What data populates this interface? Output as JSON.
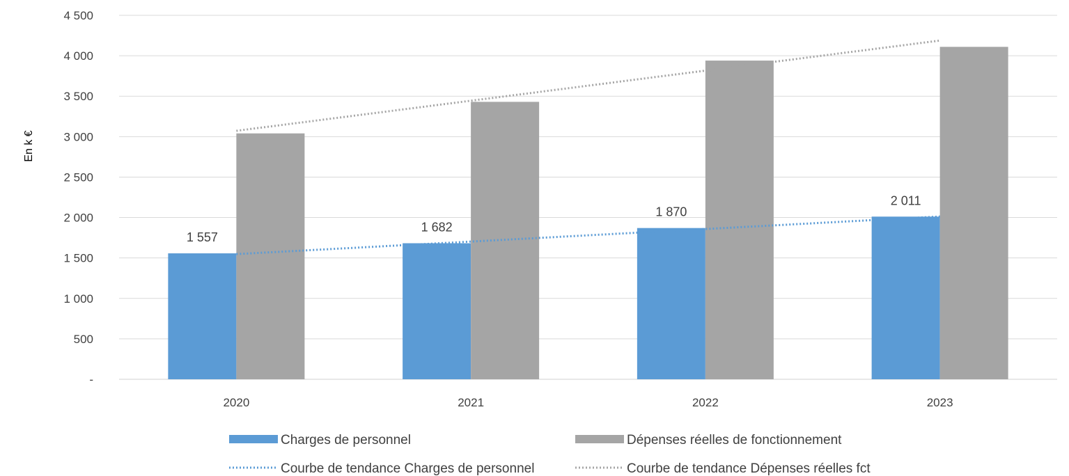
{
  "chart_data": {
    "type": "bar",
    "title": "",
    "xlabel": "",
    "ylabel": "En k €",
    "ylim": [
      0,
      4500
    ],
    "ytick_step": 500,
    "ytick_labels": [
      "-",
      "500",
      "1 000",
      "1 500",
      "2 000",
      "2 500",
      "3 000",
      "3 500",
      "4 000",
      "4 500"
    ],
    "categories": [
      "2020",
      "2021",
      "2022",
      "2023"
    ],
    "grid": true,
    "legend_position": "bottom",
    "series": [
      {
        "name": "Charges de personnel",
        "color": "#5B9BD5",
        "values": [
          1557,
          1682,
          1870,
          2011
        ],
        "data_labels": [
          "1 557",
          "1 682",
          "1 870",
          "2 011"
        ]
      },
      {
        "name": "Dépenses réelles de fonctionnement",
        "color": "#A5A5A5",
        "values": [
          3040,
          3430,
          3940,
          4110
        ]
      }
    ],
    "trendlines": [
      {
        "name": "Courbe de tendance Charges de personnel",
        "series": 0,
        "color": "#5B9BD5",
        "style": "dotted"
      },
      {
        "name": "Courbe de tendance Dépenses réelles fct",
        "series": 1,
        "color": "#A5A5A5",
        "style": "dotted"
      }
    ]
  }
}
